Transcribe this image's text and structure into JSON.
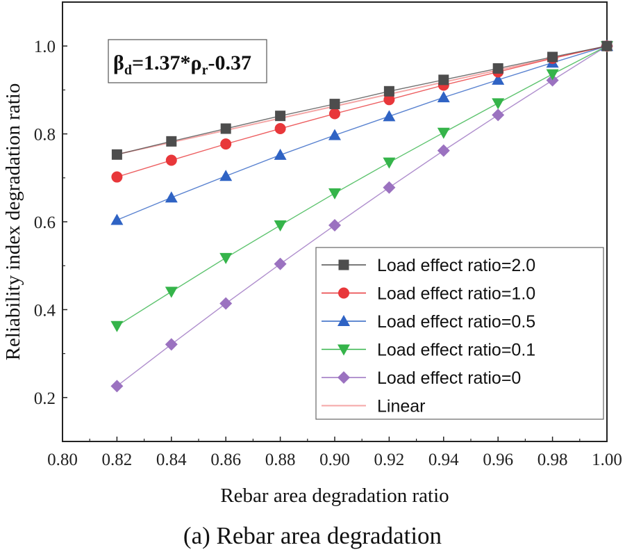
{
  "chart_data": {
    "type": "line",
    "xlabel": "Rebar area degradation ratio",
    "ylabel": "Reliability index degradation ratio",
    "xlim": [
      0.8,
      1.0
    ],
    "ylim": [
      0.1,
      1.1
    ],
    "x_ticks": [
      "0.80",
      "0.82",
      "0.84",
      "0.86",
      "0.88",
      "0.90",
      "0.92",
      "0.94",
      "0.96",
      "0.98",
      "1.00"
    ],
    "y_ticks": [
      "0.2",
      "0.4",
      "0.6",
      "0.8",
      "1.0"
    ],
    "x": [
      0.82,
      0.84,
      0.86,
      0.88,
      0.9,
      0.92,
      0.94,
      0.96,
      0.98,
      1.0
    ],
    "series": [
      {
        "name": "Load effect ratio=2.0",
        "marker": "square",
        "color": "#4d4d4d",
        "values": [
          0.753,
          0.783,
          0.812,
          0.841,
          0.868,
          0.897,
          0.923,
          0.949,
          0.975,
          1.0
        ]
      },
      {
        "name": "Load effect ratio=1.0",
        "marker": "circle",
        "color": "#e8373a",
        "values": [
          0.702,
          0.74,
          0.777,
          0.812,
          0.846,
          0.878,
          0.911,
          0.941,
          0.972,
          1.0
        ]
      },
      {
        "name": "Load effect ratio=0.5",
        "marker": "triangle-up",
        "color": "#2f63c4",
        "values": [
          0.604,
          0.655,
          0.704,
          0.752,
          0.797,
          0.84,
          0.883,
          0.923,
          0.962,
          1.0
        ]
      },
      {
        "name": "Load effect ratio=0.1",
        "marker": "triangle-down",
        "color": "#35b44a",
        "values": [
          0.363,
          0.441,
          0.518,
          0.592,
          0.665,
          0.735,
          0.803,
          0.87,
          0.936,
          1.0
        ]
      },
      {
        "name": "Load effect ratio=0",
        "marker": "diamond",
        "color": "#9b72c0",
        "values": [
          0.226,
          0.321,
          0.414,
          0.504,
          0.592,
          0.678,
          0.762,
          0.843,
          0.922,
          1.0
        ]
      }
    ],
    "fit": {
      "name": "Linear",
      "color": "#f4a6a6",
      "slope": 1.37,
      "intercept": -0.37
    },
    "equation": {
      "beta": "β",
      "beta_sub": "d",
      "middle": "=1.37*",
      "rho": "ρ",
      "rho_sub": "r",
      "tail": "-0.37"
    },
    "legend_position": "bottom-right",
    "grid": false
  },
  "caption": "(a) Rebar area degradation"
}
